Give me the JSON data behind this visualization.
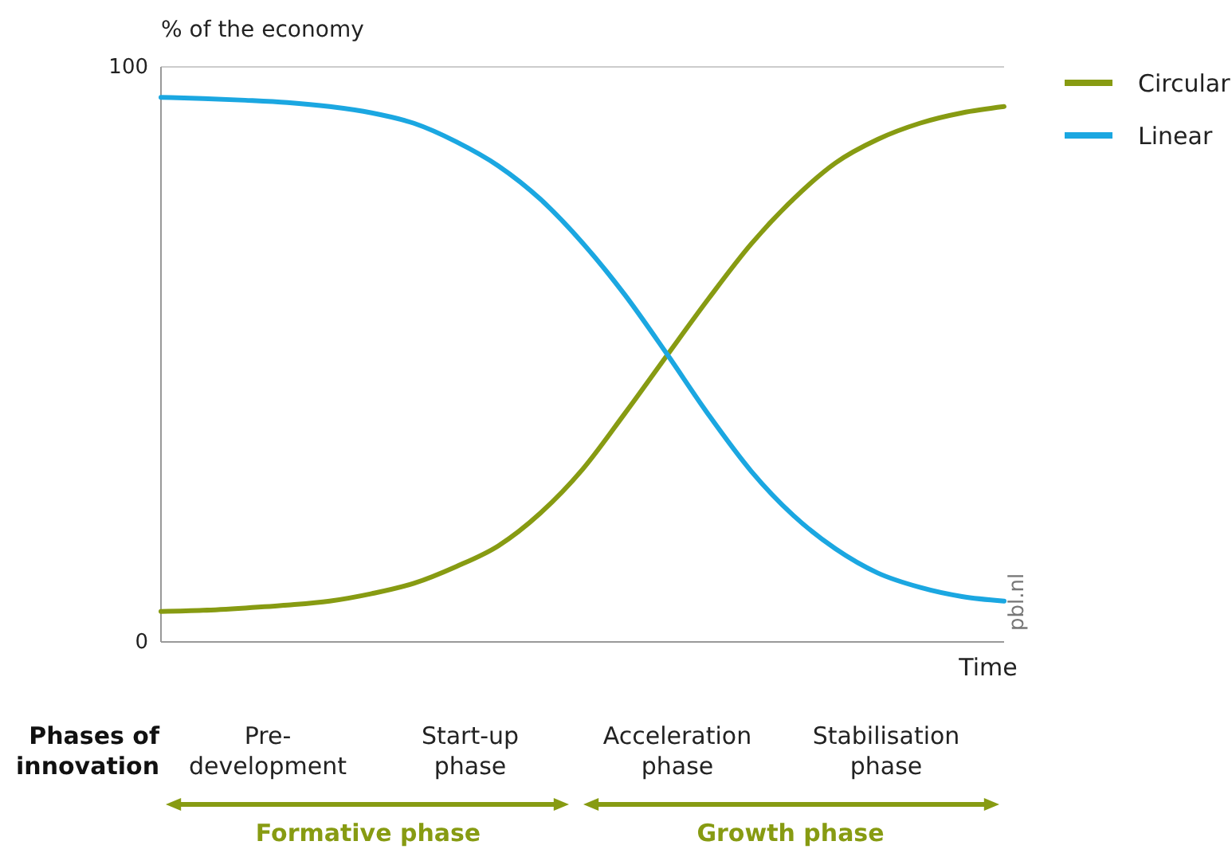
{
  "chart_data": {
    "type": "line",
    "ylabel": "% of the economy",
    "xlabel": "Time",
    "categories": [
      null,
      null,
      null,
      null,
      null,
      null,
      null,
      null,
      null,
      null,
      null,
      null,
      null,
      null,
      null,
      null,
      null,
      null,
      null,
      null,
      null
    ],
    "series": [
      {
        "name": "Circular",
        "color": "#879b12",
        "values": [
          5.3,
          5.5,
          5.9,
          6.4,
          7.1,
          8.4,
          10.2,
          13.1,
          16.7,
          22.4,
          30,
          39.7,
          49.8,
          59.8,
          69.2,
          77,
          83.3,
          87.4,
          90.2,
          92,
          93.1
        ]
      },
      {
        "name": "Linear",
        "color": "#1ba7e1",
        "values": [
          94.7,
          94.5,
          94.2,
          93.8,
          93.1,
          92,
          90.2,
          87,
          82.8,
          77,
          69.4,
          60.4,
          50.1,
          39.4,
          29.7,
          22,
          16.2,
          12,
          9.5,
          7.9,
          7.1
        ]
      }
    ],
    "ylim": [
      0,
      100
    ],
    "yticks": [
      0,
      100
    ],
    "grid": "y",
    "legend": "top right",
    "marker": "none",
    "line_style": "solid",
    "annotations": [
      "pbl.nl",
      "Phases of\ninnovation",
      "Pre-\ndevelopment",
      "Start-up\nphase",
      "Acceleration\nphase",
      "Stabilisation\nphase",
      "Formative phase",
      "Growth phase"
    ]
  }
}
